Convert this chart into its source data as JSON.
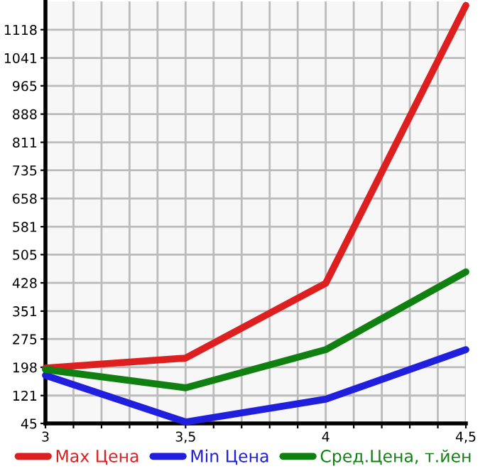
{
  "chart_data": {
    "type": "line",
    "x": [
      3,
      3.5,
      4,
      4.5
    ],
    "series": [
      {
        "name": "Max Цена",
        "color": "#dd1f1f",
        "values": [
          196,
          223,
          427,
          1184
        ]
      },
      {
        "name": "Min Цена",
        "color": "#1f1fdd",
        "values": [
          176,
          49,
          111,
          246
        ]
      },
      {
        "name": "Сред.Цена, т.йен",
        "color": "#108010",
        "values": [
          192,
          142,
          246,
          458
        ]
      }
    ],
    "xlim": [
      3,
      4.5
    ],
    "xticks": [
      {
        "value": 3,
        "label": "3"
      },
      {
        "value": 3.1,
        "label": null
      },
      {
        "value": 3.2,
        "label": null
      },
      {
        "value": 3.3,
        "label": null
      },
      {
        "value": 3.4,
        "label": null
      },
      {
        "value": 3.5,
        "label": "3,5"
      },
      {
        "value": 3.6,
        "label": null
      },
      {
        "value": 3.7,
        "label": null
      },
      {
        "value": 3.8,
        "label": null
      },
      {
        "value": 3.9,
        "label": null
      },
      {
        "value": 4,
        "label": "4"
      },
      {
        "value": 4.1,
        "label": null
      },
      {
        "value": 4.2,
        "label": null
      },
      {
        "value": 4.3,
        "label": null
      },
      {
        "value": 4.4,
        "label": null
      },
      {
        "value": 4.5,
        "label": "4,5"
      }
    ],
    "ylim": [
      45,
      1195
    ],
    "yticks": [
      45,
      121,
      198,
      275,
      351,
      428,
      505,
      581,
      658,
      735,
      811,
      888,
      965,
      1041,
      1118
    ],
    "grid": true,
    "legend": "bottom",
    "marker": "none",
    "line_style": "solid"
  }
}
